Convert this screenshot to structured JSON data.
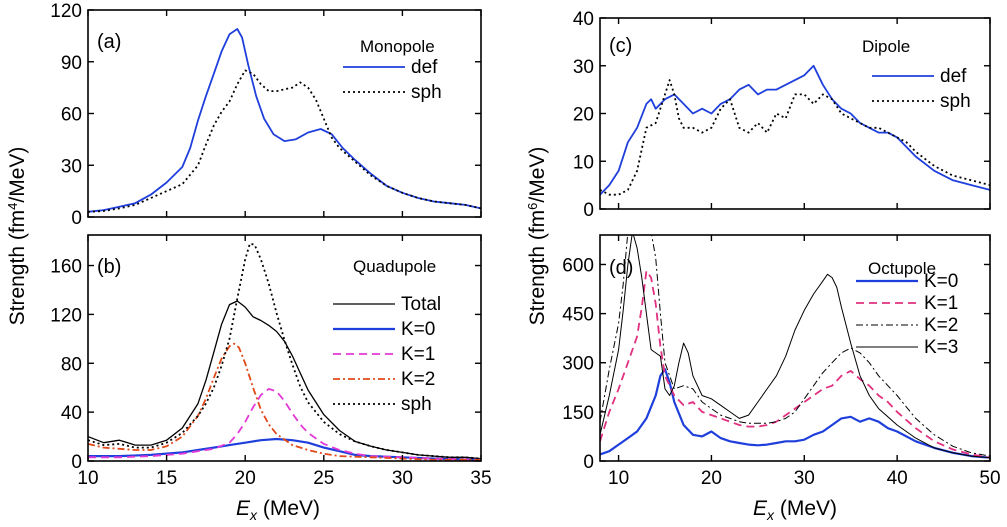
{
  "chart_data": [
    {
      "id": "a",
      "type": "line",
      "panel_label": "(a)",
      "title": "Monopole",
      "xlim": [
        10,
        35
      ],
      "ylim": [
        0,
        120
      ],
      "yticks": [
        0,
        30,
        60,
        90,
        120
      ],
      "series": [
        {
          "name": "def",
          "color": "#1f3fdc",
          "dash": "solid",
          "x": [
            10,
            11,
            12,
            13,
            14,
            15,
            16,
            16.5,
            17,
            17.5,
            18,
            18.5,
            19,
            19.5,
            19.8,
            20.2,
            20.7,
            21.2,
            21.8,
            22.5,
            23.2,
            24,
            24.8,
            25.5,
            26.2,
            27,
            28,
            29,
            30,
            31,
            32,
            33,
            34,
            35
          ],
          "y": [
            3,
            4,
            6,
            8,
            13,
            20,
            29,
            40,
            56,
            70,
            83,
            96,
            106,
            109,
            104,
            88,
            70,
            57,
            48,
            44,
            45,
            49,
            51,
            48,
            40,
            33,
            25,
            18,
            14,
            11,
            9,
            8,
            7,
            5
          ]
        },
        {
          "name": "sph",
          "color": "#000000",
          "dash": "dot",
          "x": [
            10,
            11,
            12,
            13,
            14,
            15,
            16,
            17,
            17.5,
            18,
            18.5,
            19,
            19.5,
            20,
            20.5,
            21,
            21.5,
            22,
            22.5,
            23,
            23.5,
            24,
            24.5,
            25,
            25.5,
            26,
            27,
            28,
            29,
            30,
            31,
            32,
            33,
            34,
            35
          ],
          "y": [
            3,
            3.5,
            5,
            7,
            11,
            15,
            19,
            30,
            42,
            53,
            61,
            67,
            77,
            85,
            83,
            77,
            73,
            73,
            74,
            75,
            78,
            75,
            68,
            57,
            46,
            40,
            32,
            24,
            18,
            14,
            11,
            9,
            8,
            7,
            5
          ]
        }
      ]
    },
    {
      "id": "b",
      "type": "line",
      "panel_label": "(b)",
      "title": "Quadupole",
      "xlim": [
        10,
        35
      ],
      "ylim": [
        0,
        185
      ],
      "yticks": [
        0,
        40,
        80,
        120,
        160
      ],
      "xticks": [
        10,
        15,
        20,
        25,
        30,
        35
      ],
      "series": [
        {
          "name": "Total",
          "color": "#000000",
          "dash": "solid",
          "width": 1.3,
          "x": [
            10,
            11,
            12,
            13,
            14,
            15,
            16,
            17,
            17.5,
            18,
            18.5,
            19,
            19.5,
            20,
            20.5,
            21,
            21.5,
            22,
            22.5,
            23,
            23.5,
            24,
            25,
            26,
            27,
            28,
            29,
            30,
            31,
            32,
            33,
            34,
            35
          ],
          "y": [
            20,
            15,
            17,
            13,
            13,
            17,
            27,
            47,
            66,
            89,
            112,
            128,
            131,
            126,
            118,
            115,
            111,
            106,
            98,
            86,
            72,
            58,
            38,
            25,
            16,
            12,
            9,
            7,
            5,
            4,
            3,
            3,
            2
          ]
        },
        {
          "name": "K=0",
          "color": "#1f3fdc",
          "dash": "solid",
          "width": 2.2,
          "x": [
            10,
            12,
            14,
            16,
            17,
            18,
            19,
            20,
            21,
            22,
            23,
            24,
            25,
            26,
            27,
            28,
            30,
            32,
            35
          ],
          "y": [
            4,
            4,
            5,
            7,
            9,
            11,
            13,
            15,
            17,
            18,
            17,
            15,
            11,
            8,
            5,
            4,
            3,
            2,
            1
          ]
        },
        {
          "name": "K=1",
          "color": "#e23ad6",
          "dash": "dash",
          "x": [
            10,
            12,
            14,
            16,
            17,
            18,
            19,
            19.5,
            20,
            20.5,
            21,
            21.5,
            22,
            22.5,
            23,
            23.5,
            24,
            25,
            26,
            27,
            28,
            30,
            32,
            35
          ],
          "y": [
            3,
            3,
            4,
            6,
            8,
            10,
            15,
            22,
            32,
            44,
            54,
            59,
            57,
            49,
            39,
            30,
            23,
            14,
            9,
            6,
            4,
            3,
            2,
            1
          ]
        },
        {
          "name": "K=2",
          "color": "#e04a1a",
          "dash": "dashdot",
          "x": [
            10,
            11,
            12,
            13,
            14,
            15,
            16,
            17,
            17.5,
            18,
            18.5,
            19,
            19.3,
            19.6,
            20,
            20.5,
            21,
            21.5,
            22,
            23,
            24,
            25,
            26,
            28,
            30,
            32,
            35
          ],
          "y": [
            14,
            11,
            10,
            9,
            9,
            12,
            20,
            37,
            51,
            68,
            84,
            94,
            96,
            93,
            80,
            60,
            42,
            30,
            22,
            13,
            9,
            6,
            4,
            3,
            2,
            1,
            1
          ]
        },
        {
          "name": "sph",
          "color": "#000000",
          "dash": "dot",
          "x": [
            10,
            11,
            12,
            13,
            14,
            15,
            16,
            17,
            17.5,
            18,
            18.5,
            19,
            19.5,
            20,
            20.3,
            20.6,
            21,
            21.5,
            22,
            22.5,
            23,
            23.5,
            24,
            25,
            26,
            27,
            28,
            29,
            30,
            31,
            32,
            33,
            34,
            35
          ],
          "y": [
            17,
            13,
            14,
            11,
            11,
            15,
            23,
            37,
            47,
            60,
            78,
            100,
            133,
            165,
            178,
            177,
            165,
            145,
            121,
            99,
            79,
            61,
            48,
            32,
            22,
            16,
            12,
            9,
            7,
            5,
            4,
            3,
            3,
            2
          ]
        }
      ]
    },
    {
      "id": "c",
      "type": "line",
      "panel_label": "(c)",
      "title": "Dipole",
      "xlim": [
        8,
        50
      ],
      "ylim": [
        0,
        40
      ],
      "yticks": [
        0,
        10,
        20,
        30,
        40
      ],
      "series": [
        {
          "name": "def",
          "color": "#1f3fdc",
          "dash": "solid",
          "x": [
            8,
            9,
            10,
            11,
            12,
            13,
            13.5,
            14,
            15,
            16,
            17,
            18,
            19,
            20,
            21,
            22,
            23,
            24,
            25,
            26,
            27,
            28,
            29,
            30,
            31,
            32,
            33,
            34,
            35,
            36,
            37,
            38,
            39,
            40,
            42,
            44,
            46,
            48,
            50
          ],
          "y": [
            3,
            5,
            8,
            14,
            17,
            22,
            23,
            21,
            23,
            24,
            22,
            20,
            21,
            20,
            22,
            23,
            25,
            26,
            24,
            25,
            25,
            26,
            27,
            28,
            30,
            26,
            23,
            21,
            20,
            18,
            17,
            16,
            16,
            15,
            11,
            8,
            6,
            5,
            4
          ]
        },
        {
          "name": "sph",
          "color": "#000000",
          "dash": "dot",
          "x": [
            8,
            9,
            10,
            11,
            12,
            13,
            14,
            15,
            15.5,
            16,
            16.5,
            17,
            18,
            19,
            20,
            21,
            22,
            23,
            24,
            25,
            26,
            27,
            28,
            29,
            30,
            31,
            32,
            33,
            34,
            35,
            36,
            37,
            38,
            39,
            40,
            41,
            42,
            44,
            46,
            48,
            50
          ],
          "y": [
            4,
            3,
            3,
            4,
            8,
            17,
            18,
            24,
            27,
            24,
            19,
            17,
            17,
            16,
            17,
            21,
            23,
            17,
            16,
            18,
            16,
            20,
            19,
            24,
            24,
            22,
            24,
            23,
            20,
            19,
            18,
            17,
            17,
            16,
            15,
            14,
            12,
            9,
            7,
            6,
            5
          ]
        }
      ]
    },
    {
      "id": "d",
      "type": "line",
      "panel_label": "(d)",
      "title": "Octupole",
      "xlim": [
        8,
        50
      ],
      "ylim": [
        0,
        690
      ],
      "yticks": [
        0,
        150,
        300,
        450,
        600
      ],
      "xticks": [
        10,
        20,
        30,
        40,
        50
      ],
      "series": [
        {
          "name": "K=0",
          "color": "#1f3fdc",
          "dash": "solid",
          "width": 2.2,
          "x": [
            8,
            9,
            10,
            11,
            12,
            13,
            14,
            14.5,
            15,
            15.5,
            16,
            17,
            18,
            19,
            20,
            21,
            22,
            23,
            24,
            25,
            26,
            27,
            28,
            29,
            30,
            31,
            32,
            33,
            34,
            35,
            36,
            37,
            38,
            39,
            40,
            42,
            44,
            46,
            48,
            50
          ],
          "y": [
            20,
            30,
            50,
            70,
            90,
            130,
            200,
            260,
            280,
            240,
            180,
            110,
            80,
            75,
            90,
            70,
            60,
            55,
            50,
            48,
            50,
            55,
            60,
            60,
            65,
            80,
            90,
            110,
            130,
            135,
            120,
            130,
            120,
            100,
            90,
            60,
            40,
            25,
            15,
            10
          ]
        },
        {
          "name": "K=1",
          "color": "#e0307f",
          "dash": "dash",
          "x": [
            8,
            9,
            10,
            11,
            12,
            12.5,
            13,
            13.5,
            14,
            14.5,
            15,
            16,
            17,
            18,
            19,
            20,
            21,
            22,
            23,
            24,
            25,
            26,
            27,
            28,
            29,
            30,
            31,
            32,
            33,
            34,
            35,
            36,
            37,
            38,
            39,
            40,
            42,
            44,
            46,
            48,
            50
          ],
          "y": [
            60,
            150,
            220,
            300,
            380,
            470,
            580,
            560,
            480,
            350,
            260,
            200,
            170,
            180,
            150,
            140,
            130,
            120,
            110,
            105,
            105,
            110,
            120,
            140,
            160,
            180,
            200,
            220,
            230,
            260,
            275,
            250,
            230,
            200,
            180,
            150,
            100,
            60,
            35,
            20,
            10
          ]
        },
        {
          "name": "K=2",
          "color": "#000000",
          "dash": "dashdot",
          "width": 1.0,
          "x": [
            8,
            9,
            10,
            10.5,
            11,
            11.5,
            12,
            12.5,
            13,
            13.5,
            14,
            14.5,
            15,
            16,
            17,
            18,
            19,
            20,
            21,
            22,
            23,
            24,
            25,
            26,
            27,
            28,
            29,
            30,
            31,
            32,
            33,
            34,
            35,
            36,
            37,
            38,
            39,
            40,
            42,
            44,
            46,
            48,
            50
          ],
          "y": [
            120,
            280,
            420,
            540,
            700,
            750,
            700,
            690,
            700,
            700,
            620,
            450,
            300,
            220,
            230,
            220,
            180,
            160,
            140,
            130,
            120,
            115,
            115,
            115,
            120,
            130,
            150,
            190,
            230,
            270,
            300,
            330,
            345,
            330,
            300,
            260,
            230,
            200,
            130,
            80,
            45,
            25,
            15
          ]
        },
        {
          "name": "K=3",
          "color": "#000000",
          "dash": "solid",
          "width": 1.0,
          "x": [
            8,
            9,
            10,
            10.5,
            11,
            11.5,
            12,
            12.5,
            13,
            13.5,
            14,
            14.5,
            15,
            15.5,
            16,
            16.5,
            17,
            17.5,
            18,
            19,
            20,
            21,
            22,
            23,
            24,
            25,
            26,
            27,
            28,
            29,
            30,
            31,
            32,
            32.5,
            33,
            33.5,
            34,
            35,
            36,
            37,
            38,
            40,
            42,
            44,
            46,
            48,
            50
          ],
          "y": [
            80,
            200,
            340,
            460,
            600,
            700,
            650,
            560,
            450,
            340,
            330,
            320,
            220,
            200,
            230,
            300,
            360,
            330,
            260,
            200,
            190,
            170,
            150,
            130,
            140,
            180,
            220,
            260,
            320,
            400,
            460,
            510,
            550,
            570,
            560,
            530,
            470,
            360,
            260,
            200,
            160,
            110,
            70,
            40,
            25,
            15,
            10
          ]
        }
      ]
    }
  ],
  "axes": {
    "left_ylabel_prefix": "Strength (fm",
    "left_ylabel_sup": "4",
    "left_ylabel_suffix": "/MeV)",
    "right_ylabel_prefix": "Strength (fm",
    "right_ylabel_sup": "6",
    "right_ylabel_suffix": "/MeV)",
    "xlabel_var": "E",
    "xlabel_sub": "x",
    "xlabel_unit": " (MeV)"
  }
}
